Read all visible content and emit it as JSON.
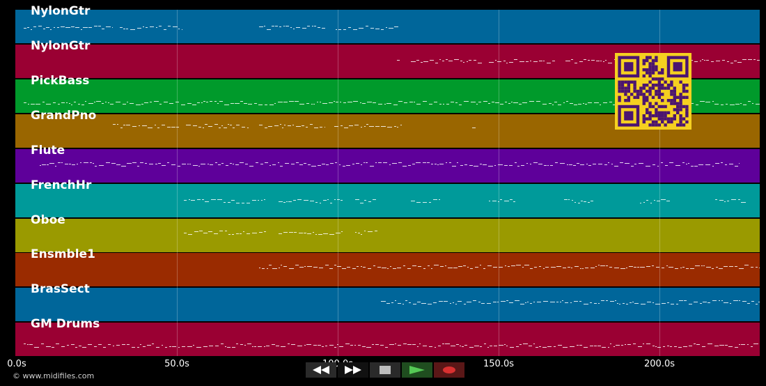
{
  "tracks": [
    {
      "name": "NylonGtr",
      "color": "#00669A"
    },
    {
      "name": "NylonGtr",
      "color": "#9A0033"
    },
    {
      "name": "PickBass",
      "color": "#009A2B"
    },
    {
      "name": "GrandPno",
      "color": "#9A6600"
    },
    {
      "name": "Flute",
      "color": "#5E009A"
    },
    {
      "name": "FrenchHr",
      "color": "#009A9A"
    },
    {
      "name": "Oboe",
      "color": "#9A9A00"
    },
    {
      "name": "Ensmble1",
      "color": "#9A2B00"
    },
    {
      "name": "BrasSect",
      "color": "#00669A"
    },
    {
      "name": "GM Drums",
      "color": "#9A0033"
    }
  ],
  "timeline": {
    "ticks": [
      "0.0s",
      "50.0s",
      "100.0s",
      "150.0s",
      "200.0s"
    ]
  },
  "copyright": "© www.midifiles.com",
  "transport": {
    "buttons": [
      {
        "name": "rewind-button",
        "icon": "rewind-icon"
      },
      {
        "name": "fast-forward-button",
        "icon": "fast-forward-icon"
      },
      {
        "name": "stop-button",
        "icon": "stop-icon"
      },
      {
        "name": "play-button",
        "icon": "play-icon"
      },
      {
        "name": "record-button",
        "icon": "record-icon"
      }
    ]
  },
  "colors": {
    "background": "#000000",
    "qr_background": "#F5D020",
    "qr_foreground": "#4B1470",
    "note": "#FFFFFF"
  },
  "qr_icon": "qr-code-icon"
}
